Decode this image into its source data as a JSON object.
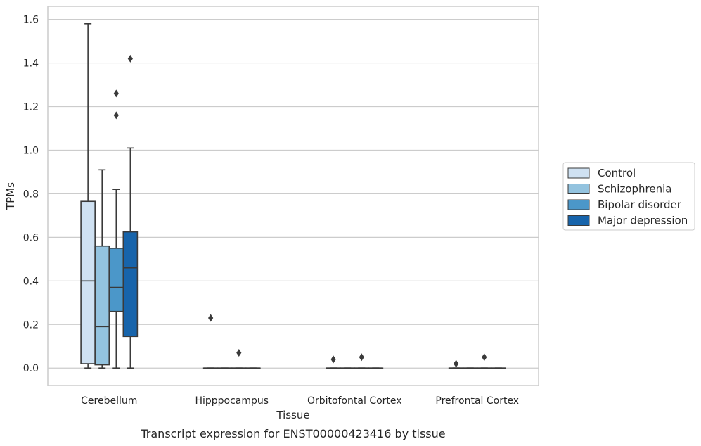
{
  "caption": "Transcript expression for ENST00000423416 by tissue",
  "chart_data": {
    "type": "box",
    "xlabel": "Tissue",
    "ylabel": "TPMs",
    "ylim": [
      -0.08,
      1.66
    ],
    "yticks": [
      "0.0",
      "0.2",
      "0.4",
      "0.6",
      "0.8",
      "1.0",
      "1.2",
      "1.4",
      "1.6"
    ],
    "categories": [
      "Cerebellum",
      "Hipppocampus",
      "Orbitofontal Cortex",
      "Prefrontal Cortex"
    ],
    "grid": "horizontal",
    "legend_position": "right",
    "series": [
      {
        "name": "Control",
        "color": "#cfe1f2",
        "boxes": [
          {
            "whislo": 0.0,
            "q1": 0.02,
            "med": 0.4,
            "q3": 0.765,
            "whishi": 1.58,
            "fliers": []
          },
          {
            "whislo": 0.0,
            "q1": 0.0,
            "med": 0.0,
            "q3": 0.0,
            "whishi": 0.0,
            "fliers": [
              0.23
            ]
          },
          {
            "whislo": 0.0,
            "q1": 0.0,
            "med": 0.0,
            "q3": 0.0,
            "whishi": 0.0,
            "fliers": [
              0.04
            ]
          },
          {
            "whislo": 0.0,
            "q1": 0.0,
            "med": 0.0,
            "q3": 0.0,
            "whishi": 0.0,
            "fliers": [
              0.02
            ]
          }
        ]
      },
      {
        "name": "Schizophrenia",
        "color": "#93c3df",
        "boxes": [
          {
            "whislo": 0.0,
            "q1": 0.015,
            "med": 0.19,
            "q3": 0.56,
            "whishi": 0.91,
            "fliers": []
          },
          {
            "whislo": 0.0,
            "q1": 0.0,
            "med": 0.0,
            "q3": 0.0,
            "whishi": 0.0,
            "fliers": []
          },
          {
            "whislo": 0.0,
            "q1": 0.0,
            "med": 0.0,
            "q3": 0.0,
            "whishi": 0.0,
            "fliers": []
          },
          {
            "whislo": 0.0,
            "q1": 0.0,
            "med": 0.0,
            "q3": 0.0,
            "whishi": 0.0,
            "fliers": []
          }
        ]
      },
      {
        "name": "Bipolar disorder",
        "color": "#4b97c9",
        "boxes": [
          {
            "whislo": 0.0,
            "q1": 0.26,
            "med": 0.37,
            "q3": 0.55,
            "whishi": 0.82,
            "fliers": [
              1.16,
              1.26
            ]
          },
          {
            "whislo": 0.0,
            "q1": 0.0,
            "med": 0.0,
            "q3": 0.0,
            "whishi": 0.0,
            "fliers": [
              0.07
            ]
          },
          {
            "whislo": 0.0,
            "q1": 0.0,
            "med": 0.0,
            "q3": 0.0,
            "whishi": 0.0,
            "fliers": [
              0.05
            ]
          },
          {
            "whislo": 0.0,
            "q1": 0.0,
            "med": 0.0,
            "q3": 0.0,
            "whishi": 0.0,
            "fliers": [
              0.05
            ]
          }
        ]
      },
      {
        "name": "Major depression",
        "color": "#1764ab",
        "boxes": [
          {
            "whislo": 0.0,
            "q1": 0.145,
            "med": 0.46,
            "q3": 0.625,
            "whishi": 1.01,
            "fliers": [
              1.42
            ]
          },
          {
            "whislo": 0.0,
            "q1": 0.0,
            "med": 0.0,
            "q3": 0.0,
            "whishi": 0.0,
            "fliers": []
          },
          {
            "whislo": 0.0,
            "q1": 0.0,
            "med": 0.0,
            "q3": 0.0,
            "whishi": 0.0,
            "fliers": []
          },
          {
            "whislo": 0.0,
            "q1": 0.0,
            "med": 0.0,
            "q3": 0.0,
            "whishi": 0.0,
            "fliers": []
          }
        ]
      }
    ]
  }
}
